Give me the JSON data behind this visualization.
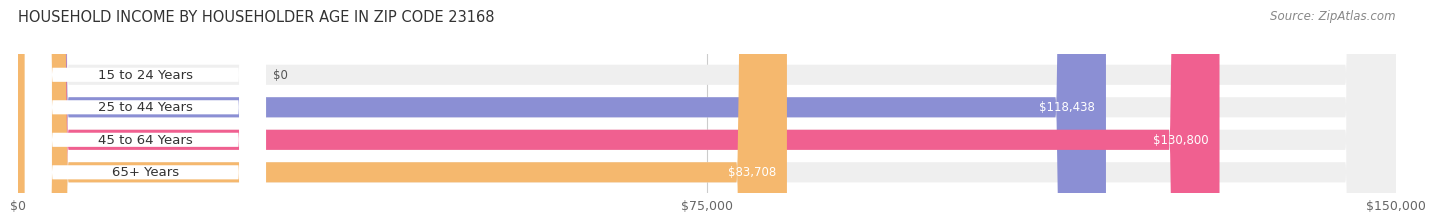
{
  "title": "HOUSEHOLD INCOME BY HOUSEHOLDER AGE IN ZIP CODE 23168",
  "source": "Source: ZipAtlas.com",
  "categories": [
    "15 to 24 Years",
    "25 to 44 Years",
    "45 to 64 Years",
    "65+ Years"
  ],
  "values": [
    0,
    118438,
    130800,
    83708
  ],
  "bar_colors": [
    "#5ecfcf",
    "#8b8fd4",
    "#f06090",
    "#f5b86e"
  ],
  "bar_bg_color": "#efefef",
  "max_value": 150000,
  "x_ticks": [
    0,
    75000,
    150000
  ],
  "x_tick_labels": [
    "$0",
    "$75,000",
    "$150,000"
  ],
  "value_labels": [
    "$0",
    "$118,438",
    "$130,800",
    "$83,708"
  ],
  "title_fontsize": 10.5,
  "source_fontsize": 8.5,
  "tick_fontsize": 9,
  "bar_label_fontsize": 8.5,
  "category_fontsize": 9.5,
  "background_color": "#ffffff"
}
